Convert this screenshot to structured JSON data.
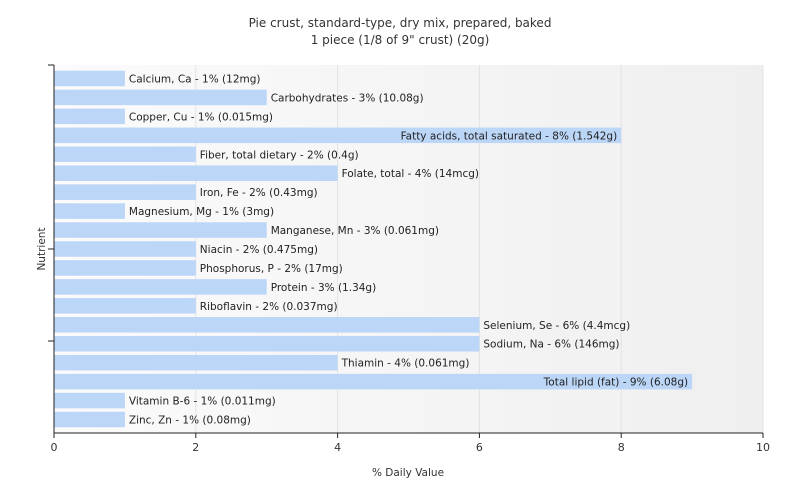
{
  "chart_data": {
    "type": "bar",
    "orientation": "horizontal",
    "title": "Pie crust, standard-type, dry mix, prepared, baked",
    "subtitle": "1 piece (1/8 of 9\" crust) (20g)",
    "xlabel": "% Daily Value",
    "ylabel": "Nutrient",
    "xlim": [
      0,
      10
    ],
    "xticks": [
      "0",
      "2",
      "4",
      "6",
      "8",
      "10"
    ],
    "grid": true,
    "bar_color": "#bcd6f7",
    "categories": [
      "Calcium, Ca",
      "Carbohydrates",
      "Copper, Cu",
      "Fatty acids, total saturated",
      "Fiber, total dietary",
      "Folate, total",
      "Iron, Fe",
      "Magnesium, Mg",
      "Manganese, Mn",
      "Niacin",
      "Phosphorus, P",
      "Protein",
      "Riboflavin",
      "Selenium, Se",
      "Sodium, Na",
      "Thiamin",
      "Total lipid (fat)",
      "Vitamin B-6",
      "Zinc, Zn"
    ],
    "values": [
      1,
      3,
      1,
      8,
      2,
      4,
      2,
      1,
      3,
      2,
      2,
      3,
      2,
      6,
      6,
      4,
      9,
      1,
      1
    ],
    "labels": [
      "Calcium, Ca - 1% (12mg)",
      "Carbohydrates - 3% (10.08g)",
      "Copper, Cu - 1% (0.015mg)",
      "Fatty acids, total saturated - 8% (1.542g)",
      "Fiber, total dietary - 2% (0.4g)",
      "Folate, total - 4% (14mcg)",
      "Iron, Fe - 2% (0.43mg)",
      "Magnesium, Mg - 1% (3mg)",
      "Manganese, Mn - 3% (0.061mg)",
      "Niacin - 2% (0.475mg)",
      "Phosphorus, P - 2% (17mg)",
      "Protein - 3% (1.34g)",
      "Riboflavin - 2% (0.037mg)",
      "Selenium, Se - 6% (4.4mcg)",
      "Sodium, Na - 6% (146mg)",
      "Thiamin - 4% (0.061mg)",
      "Total lipid (fat) - 9% (6.08g)",
      "Vitamin B-6 - 1% (0.011mg)",
      "Zinc, Zn - 1% (0.08mg)"
    ]
  }
}
